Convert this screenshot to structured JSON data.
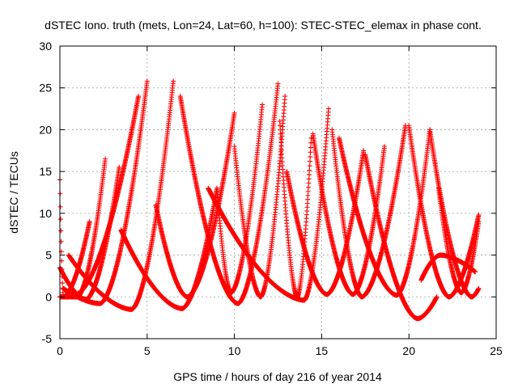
{
  "chart_data": {
    "type": "scatter",
    "title": "dSTEC Iono. truth (mets, Lon=24, Lat=60, h=100): STEC-STEC_elemax in phase cont.",
    "xlabel": "GPS time / hours of day 216 of year 2014",
    "ylabel": "dSTEC  / TECUs",
    "xlim": [
      0,
      25
    ],
    "ylim": [
      -5,
      30
    ],
    "xticks": [
      0,
      5,
      10,
      15,
      20,
      25
    ],
    "yticks": [
      -5,
      0,
      5,
      10,
      15,
      20,
      25,
      30
    ],
    "grid": true,
    "marker": "+",
    "color": "#ff0000",
    "arcs": [
      {
        "t_start": 0.0,
        "t_min": 0.2,
        "t_end": 1.7,
        "y_start": 14.0,
        "y_min": 0.0,
        "y_end": 9.0
      },
      {
        "t_start": 0.0,
        "t_min": 1.5,
        "t_end": 3.4,
        "y_start": 3.5,
        "y_min": -0.3,
        "y_end": 15.5
      },
      {
        "t_start": 0.2,
        "t_min": 2.3,
        "t_end": 5.0,
        "y_start": 1.0,
        "y_min": -0.8,
        "y_end": 25.8
      },
      {
        "t_start": 0.5,
        "t_min": 4.1,
        "t_end": 6.5,
        "y_start": 5.0,
        "y_min": -1.5,
        "y_end": 25.8
      },
      {
        "t_start": 1.0,
        "t_min": 0.9,
        "t_end": 4.5,
        "y_start": 12.5,
        "y_min": 0.3,
        "y_end": 24.0
      },
      {
        "t_start": 0.0,
        "t_min": 1.0,
        "t_end": 2.6,
        "y_start": 0.0,
        "y_min": 0.0,
        "y_end": 16.5
      },
      {
        "t_start": 3.5,
        "t_min": 7.0,
        "t_end": 9.0,
        "y_start": 8.0,
        "y_min": -1.4,
        "y_end": 13.0
      },
      {
        "t_start": 5.5,
        "t_min": 7.3,
        "t_end": 10.0,
        "y_start": 11.0,
        "y_min": 0.0,
        "y_end": 22.0
      },
      {
        "t_start": 6.9,
        "t_min": 10.2,
        "t_end": 12.5,
        "y_start": 24.0,
        "y_min": -0.8,
        "y_end": 25.5
      },
      {
        "t_start": 9.0,
        "t_min": 9.8,
        "t_end": 11.6,
        "y_start": 13.0,
        "y_min": 0.5,
        "y_end": 23.0
      },
      {
        "t_start": 10.0,
        "t_min": 11.5,
        "t_end": 12.9,
        "y_start": 18.0,
        "y_min": 0.0,
        "y_end": 24.0
      },
      {
        "t_start": 12.6,
        "t_min": 13.6,
        "t_end": 14.4,
        "y_start": 21.0,
        "y_min": 0.0,
        "y_end": 19.0
      },
      {
        "t_start": 8.5,
        "t_min": 14.0,
        "t_end": 15.4,
        "y_start": 13.0,
        "y_min": -0.4,
        "y_end": 22.5
      },
      {
        "t_start": 13.0,
        "t_min": 15.3,
        "t_end": 17.4,
        "y_start": 15.0,
        "y_min": 0.3,
        "y_end": 17.5
      },
      {
        "t_start": 14.5,
        "t_min": 16.8,
        "t_end": 18.6,
        "y_start": 19.5,
        "y_min": 0.3,
        "y_end": 18.0
      },
      {
        "t_start": 15.6,
        "t_min": 17.3,
        "t_end": 19.8,
        "y_start": 20.0,
        "y_min": 0.0,
        "y_end": 20.5
      },
      {
        "t_start": 16.0,
        "t_min": 19.3,
        "t_end": 21.2,
        "y_start": 19.0,
        "y_min": 0.2,
        "y_end": 20.0
      },
      {
        "t_start": 17.5,
        "t_min": 20.5,
        "t_end": 21.6,
        "y_start": 17.0,
        "y_min": -2.6,
        "y_end": 0.0
      },
      {
        "t_start": 20.0,
        "t_min": 22.3,
        "t_end": 24.0,
        "y_start": 20.5,
        "y_min": 0.0,
        "y_end": 9.8
      },
      {
        "t_start": 21.2,
        "t_min": 23.6,
        "t_end": 24.0,
        "y_start": 20.0,
        "y_min": 0.0,
        "y_end": 1.0
      },
      {
        "t_start": 21.7,
        "t_min": 23.0,
        "t_end": 24.0,
        "y_start": 13.0,
        "y_min": 0.5,
        "y_end": 9.0
      },
      {
        "t_start": 20.7,
        "t_min": 21.8,
        "t_end": 23.8,
        "y_start": 2.0,
        "y_min": 5.0,
        "y_end": 3.0
      }
    ]
  }
}
